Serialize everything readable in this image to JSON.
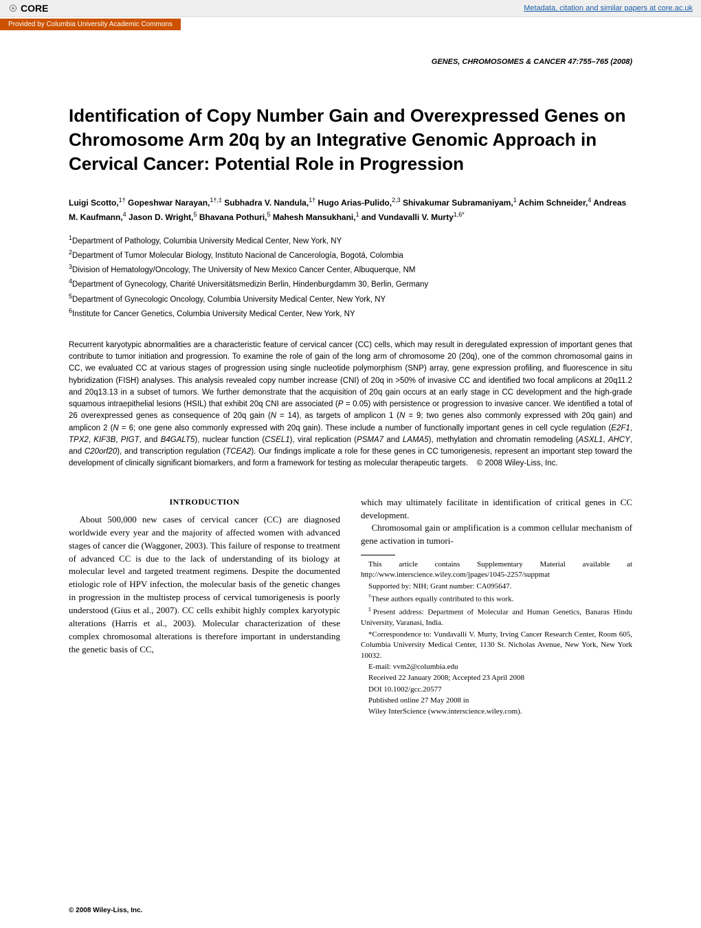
{
  "banner": {
    "logo_text": "CORE",
    "link_text": "Metadata, citation and similar papers at core.ac.uk",
    "provided_by": "Provided by Columbia University Academic Commons"
  },
  "journal_ref": "GENES, CHROMOSOMES & CANCER 47:755–765 (2008)",
  "title": "Identification of Copy Number Gain and Overexpressed Genes on Chromosome Arm 20q by an Integrative Genomic Approach in Cervical Cancer: Potential Role in Progression",
  "authors_html": "Luigi Scotto,<sup>1†</sup> Gopeshwar Narayan,<sup>1†,‡</sup> Subhadra V. Nandula,<sup>1†</sup> Hugo Arias-Pulido,<sup>2,3</sup> Shivakumar Subramaniyam,<sup>1</sup> Achim Schneider,<sup>4</sup> Andreas M. Kaufmann,<sup>4</sup> Jason D. Wright,<sup>5</sup> Bhavana Pothuri,<sup>5</sup> Mahesh Mansukhani,<sup>1</sup> and Vundavalli V. Murty<sup>1,6*</sup>",
  "affiliations": [
    "<sup>1</sup>Department of Pathology, Columbia University Medical Center, New York, NY",
    "<sup>2</sup>Department of Tumor Molecular Biology, Instituto Nacional de Cancerología, Bogotá, Colombia",
    "<sup>3</sup>Division of Hematology/Oncology, The University of New Mexico Cancer Center, Albuquerque, NM",
    "<sup>4</sup>Department of Gynecology, Charité Universitätsmedizin Berlin, Hindenburgdamm 30, Berlin, Germany",
    "<sup>5</sup>Department of Gynecologic Oncology, Columbia University Medical Center, New York, NY",
    "<sup>6</sup>Institute for Cancer Genetics, Columbia University Medical Center, New York, NY"
  ],
  "abstract": "Recurrent karyotypic abnormalities are a characteristic feature of cervical cancer (CC) cells, which may result in deregulated expression of important genes that contribute to tumor initiation and progression. To examine the role of gain of the long arm of chromosome 20 (20q), one of the common chromosomal gains in CC, we evaluated CC at various stages of progression using single nucleotide polymorphism (SNP) array, gene expression profiling, and fluorescence in situ hybridization (FISH) analyses. This analysis revealed copy number increase (CNI) of 20q in >50% of invasive CC and identified two focal amplicons at 20q11.2 and 20q13.13 in a subset of tumors. We further demonstrate that the acquisition of 20q gain occurs at an early stage in CC development and the high-grade squamous intraepithelial lesions (HSIL) that exhibit 20q CNI are associated (<i>P</i> = 0.05) with persistence or progression to invasive cancer. We identified a total of 26 overexpressed genes as consequence of 20q gain (<i>N</i> = 14), as targets of amplicon 1 (<i>N</i> = 9; two genes also commonly expressed with 20q gain) and amplicon 2 (<i>N</i> = 6; one gene also commonly expressed with 20q gain). These include a number of functionally important genes in cell cycle regulation (<i>E2F1</i>, <i>TPX2</i>, <i>KIF3B</i>, <i>PIGT</i>, and <i>B4GALT5</i>), nuclear function (<i>CSEL1</i>), viral replication (<i>PSMA7</i> and <i>LAMA5</i>), methylation and chromatin remodeling (<i>ASXL1</i>, <i>AHCY</i>, and <i>C20orf20</i>), and transcription regulation (<i>TCEA2</i>). Our findings implicate a role for these genes in CC tumorigenesis, represent an important step toward the development of clinically significant biomarkers, and form a framework for testing as molecular therapeutic targets.    © 2008 Wiley-Liss, Inc.",
  "section_head": "INTRODUCTION",
  "intro_left": "About 500,000 new cases of cervical cancer (CC) are diagnosed worldwide every year and the majority of affected women with advanced stages of cancer die (Waggoner, 2003). This failure of response to treatment of advanced CC is due to the lack of understanding of its biology at molecular level and targeted treatment regimens. Despite the documented etiologic role of HPV infection, the molecular basis of the genetic changes in progression in the multistep process of cervical tumorigenesis is poorly understood (Gius et al., 2007). CC cells exhibit highly complex karyotypic alterations (Harris et al., 2003). Molecular characterization of these complex chromosomal alterations is therefore important in understanding the genetic basis of CC,",
  "intro_right_1": "which may ultimately facilitate in identification of critical genes in CC development.",
  "intro_right_2": "Chromosomal gain or amplification is a common cellular mechanism of gene activation in tumori-",
  "footnotes": [
    "This article contains Supplementary Material available at http://www.interscience.wiley.com/jpages/1045-2257/suppmat",
    "Supported by: NIH; Grant number: CA095647.",
    "<sup>†</sup>These authors equally contributed to this work.",
    "<sup>‡</sup>Present address: Department of Molecular and Human Genetics, Banaras Hindu University, Varanasi, India.",
    "*Correspondence to: Vundavalli V. Murty, Irving Cancer Research Center, Room 605, Columbia University Medical Center, 1130 St. Nicholas Avenue, New York, New York 10032.",
    "E-mail: vvm2@columbia.edu",
    "Received 22 January 2008; Accepted 23 April 2008",
    "DOI 10.1002/gcc.20577",
    "Published online 27 May 2008 in",
    "Wiley InterScience (www.interscience.wiley.com)."
  ],
  "copyright": "© 2008 Wiley-Liss, Inc.",
  "colors": {
    "banner_bg": "#efefef",
    "orange_bar": "#cc5200",
    "link_blue": "#1a5da8",
    "text": "#000000",
    "page_bg": "#ffffff"
  }
}
